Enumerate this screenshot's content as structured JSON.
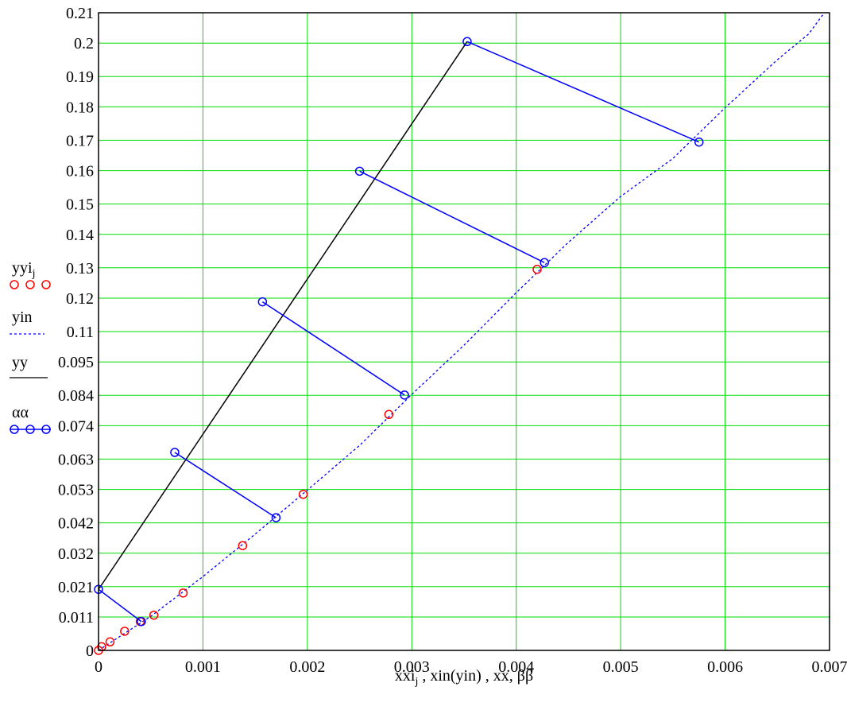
{
  "chart_data": {
    "type": "line",
    "title": "",
    "xlabel": "xxi_j , xin(yin) , xx, ββ",
    "xlabel_parts": [
      "xxi",
      "j",
      " , xin(yin) , xx, ββ"
    ],
    "ylabel": "",
    "xlim": [
      0,
      0.007
    ],
    "ylim": [
      0,
      0.21
    ],
    "grid": true,
    "colors": {
      "grid": "#00dd00",
      "red": "#ff0000",
      "blue": "#0000ff",
      "black": "#000000"
    },
    "x_ticks": [
      0,
      0.001,
      0.002,
      0.003,
      0.004,
      0.005,
      0.006,
      0.007
    ],
    "x_tick_labels": [
      "0",
      "0.001",
      "0.002",
      "0.003",
      "0.004",
      "0.005",
      "0.006",
      "0.007"
    ],
    "y_ticks": [
      0,
      0.011,
      0.021,
      0.032,
      0.042,
      0.053,
      0.063,
      0.074,
      0.084,
      0.095,
      0.105,
      0.116,
      0.126,
      0.137,
      0.147,
      0.158,
      0.168,
      0.179,
      0.189,
      0.2,
      0.21
    ],
    "y_tick_labels": [
      "0",
      "0.011",
      "0.021",
      "0.032",
      "0.042",
      "0.053",
      "0.063",
      "0.074",
      "0.084",
      "0.095",
      "0.11",
      "0.12",
      "0.13",
      "0.14",
      "0.15",
      "0.16",
      "0.17",
      "0.18",
      "0.19",
      "0.2",
      "0.21"
    ],
    "legend": [
      {
        "label": "yyi",
        "sub": "j",
        "style": "red-circles"
      },
      {
        "label": "yin",
        "sub": "",
        "style": "blue-dotted"
      },
      {
        "label": "yy",
        "sub": "",
        "style": "black-solid"
      },
      {
        "label": "αα",
        "sub": "",
        "style": "blue-circle-line"
      }
    ],
    "series": [
      {
        "name": "yyi",
        "style": "red-circles",
        "x": [
          0,
          3e-05,
          0.00011,
          0.00025,
          0.0004,
          0.00053,
          0.00081,
          0.00138,
          0.00196,
          0.00278,
          0.0042
        ],
        "y": [
          0,
          0.0012,
          0.0028,
          0.0063,
          0.0095,
          0.0116,
          0.0189,
          0.0345,
          0.0514,
          0.0777,
          0.1255
        ]
      },
      {
        "name": "yin",
        "style": "blue-dotted",
        "x": [
          0,
          0.0002,
          0.0005,
          0.001,
          0.0015,
          0.002,
          0.0025,
          0.003,
          0.0035,
          0.004,
          0.0045,
          0.005,
          0.0055,
          0.006,
          0.0065,
          0.0068,
          0.00695
        ],
        "y": [
          0,
          0.0045,
          0.0112,
          0.0243,
          0.0383,
          0.0528,
          0.0675,
          0.0843,
          0.1005,
          0.1178,
          0.1344,
          0.1495,
          0.162,
          0.1787,
          0.1945,
          0.203,
          0.21
        ]
      },
      {
        "name": "yy",
        "style": "black-solid",
        "x": [
          0,
          0.00353
        ],
        "y": [
          0.0201,
          0.2005
        ]
      },
      {
        "name": "αα",
        "style": "blue-circle-line",
        "segments": [
          {
            "x": [
              0,
              0.00041
            ],
            "y": [
              0.0201,
              0.0095
            ]
          },
          {
            "x": [
              0.00073,
              0.0017
            ],
            "y": [
              0.0652,
              0.0437
            ]
          },
          {
            "x": [
              0.00157,
              0.00293
            ],
            "y": [
              0.1148,
              0.0841
            ]
          },
          {
            "x": [
              0.0025,
              0.00427
            ],
            "y": [
              0.1578,
              0.1277
            ]
          },
          {
            "x": [
              0.00353,
              0.00575
            ],
            "y": [
              0.2005,
              0.1674
            ]
          }
        ]
      }
    ]
  }
}
